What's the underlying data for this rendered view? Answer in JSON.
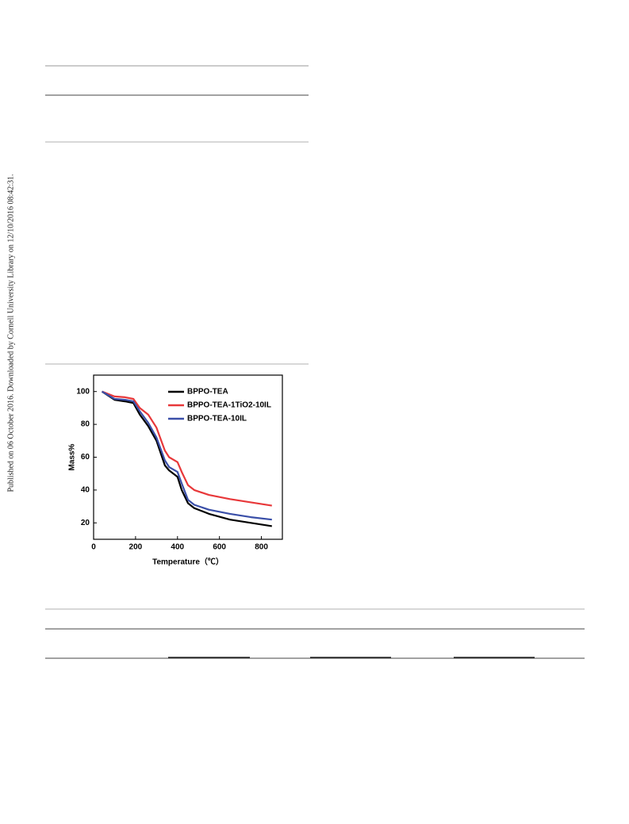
{
  "sidebar": "Published on 06 October 2016. Downloaded by Cornell University Library on 12/10/2016 08:42:31.",
  "chart_data": {
    "type": "line",
    "xlabel": "Temperature（℃）",
    "ylabel": "Mass%",
    "x": [
      40,
      100,
      150,
      190,
      220,
      260,
      300,
      340,
      360,
      400,
      420,
      450,
      480,
      550,
      650,
      750,
      850
    ],
    "series": [
      {
        "name": "BPPO-TEA",
        "color": "#000000",
        "values": [
          100,
          95,
          94,
          93,
          86,
          79,
          70,
          55,
          52,
          48,
          40,
          32,
          29,
          25.5,
          22,
          20,
          18
        ]
      },
      {
        "name": "BPPO-TEA-1TiO2-10IL",
        "color": "#e8383a",
        "values": [
          100,
          97,
          96.5,
          95.5,
          90,
          86,
          78,
          64,
          60,
          57,
          51,
          43,
          40,
          37,
          34.5,
          32.5,
          30.5
        ]
      },
      {
        "name": "BPPO-TEA-10IL",
        "color": "#3a4fa8",
        "values": [
          100,
          95.5,
          95,
          94,
          88,
          81,
          72,
          58,
          54,
          51,
          44,
          34,
          31,
          28,
          25.5,
          23.5,
          22
        ]
      }
    ],
    "xlim": [
      0,
      900
    ],
    "ylim": [
      10,
      110
    ],
    "xticks": [
      0,
      200,
      400,
      600,
      800
    ],
    "yticks": [
      20,
      40,
      60,
      80,
      100
    ],
    "legend": "upper right"
  }
}
